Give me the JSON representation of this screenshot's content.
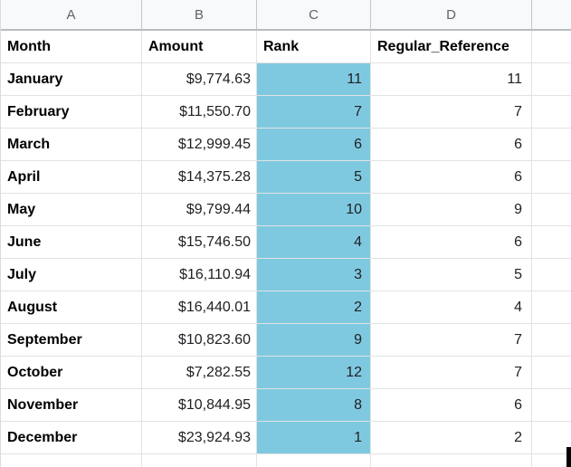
{
  "sheet": {
    "column_letters": [
      "A",
      "B",
      "C",
      "D"
    ],
    "headers": {
      "month": "Month",
      "amount": "Amount",
      "rank": "Rank",
      "reference": "Regular_Reference"
    },
    "rows": [
      {
        "month": "January",
        "amount": "$9,774.63",
        "rank": "11",
        "reference": "11"
      },
      {
        "month": "February",
        "amount": "$11,550.70",
        "rank": "7",
        "reference": "7"
      },
      {
        "month": "March",
        "amount": "$12,999.45",
        "rank": "6",
        "reference": "6"
      },
      {
        "month": "April",
        "amount": "$14,375.28",
        "rank": "5",
        "reference": "6"
      },
      {
        "month": "May",
        "amount": "$9,799.44",
        "rank": "10",
        "reference": "9"
      },
      {
        "month": "June",
        "amount": "$15,746.50",
        "rank": "4",
        "reference": "6"
      },
      {
        "month": "July",
        "amount": "$16,110.94",
        "rank": "3",
        "reference": "5"
      },
      {
        "month": "August",
        "amount": "$16,440.01",
        "rank": "2",
        "reference": "4"
      },
      {
        "month": "September",
        "amount": "$10,823.60",
        "rank": "9",
        "reference": "7"
      },
      {
        "month": "October",
        "amount": "$7,282.55",
        "rank": "12",
        "reference": "7"
      },
      {
        "month": "November",
        "amount": "$10,844.95",
        "rank": "8",
        "reference": "6"
      },
      {
        "month": "December",
        "amount": "$23,924.93",
        "rank": "1",
        "reference": "2"
      }
    ],
    "colors": {
      "rank_highlight": "#7fc9e0",
      "header_strip_bg": "#f8f9fa",
      "header_strip_text": "#5f6368",
      "grid_line": "#e2e2e2",
      "header_strip_line": "#b9bdc1",
      "clipped_object": "#000000"
    }
  }
}
